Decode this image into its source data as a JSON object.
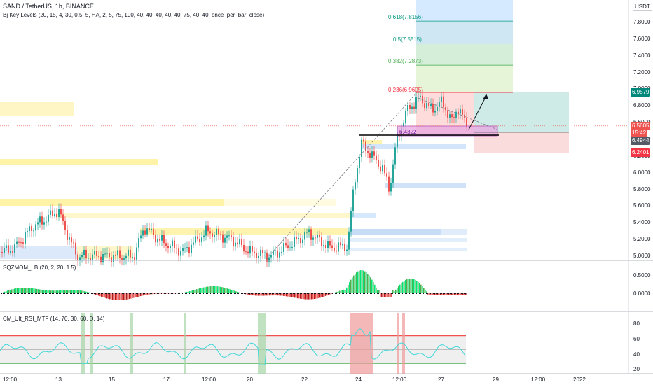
{
  "header": {
    "symbol_line": "SAND / TetherUS, 1h, BINANCE",
    "indicator_line": "Bj Key Levels (20, 15, 4, 30, 0.5, 5, HA, 2, 5, 75, 100, 40, 40, 40, 40, 40, 75, 40, 40, once_per_bar_close)",
    "currency_button": "USDT",
    "currency_prefix": "€"
  },
  "price_axis": {
    "ticks": [
      "7.8000",
      "7.6000",
      "7.4000",
      "7.2000",
      "7.0000",
      "6.8000",
      "6.6000",
      "6.4000",
      "6.2000",
      "6.0000",
      "5.8000",
      "5.6000",
      "5.4000",
      "5.2000",
      "5.0000"
    ],
    "tick_values": [
      7.8,
      7.6,
      7.4,
      7.2,
      7.0,
      6.8,
      6.6,
      6.4,
      6.2,
      6.0,
      5.8,
      5.6,
      5.4,
      5.2,
      5.0
    ],
    "badges": [
      {
        "text": "6.9579",
        "value": 6.9579,
        "color": "#00897b"
      },
      {
        "text": "6.5605",
        "value": 6.5605,
        "color": "#ef5350",
        "sub": "15:42"
      },
      {
        "text": "6.4944",
        "value": 6.4944,
        "color": "#555b66"
      },
      {
        "text": "6.2401",
        "value": 6.2401,
        "color": "#f23645"
      }
    ]
  },
  "fib_levels": [
    {
      "label": "0.618(7.8156)",
      "value": 7.8156,
      "color": "#089981"
    },
    {
      "label": "0.5(7.5515)",
      "value": 7.5515,
      "color": "#089981"
    },
    {
      "label": "0.382(7.2873)",
      "value": 7.2873,
      "color": "#4caf50"
    },
    {
      "label": "0.236(6.9605)",
      "value": 6.9605,
      "color": "#f23645"
    }
  ],
  "range_box_label": "6.4322",
  "sqz_panel": {
    "title": "SQZMOM_LB (20, 2, 20, 1.5)",
    "ticks": [
      "0.5000",
      "0.0000"
    ],
    "tick_values": [
      0.5,
      0.0
    ]
  },
  "rsi_panel": {
    "title": "CM_Ult_RSI_MTF (14, 70, 30, 60, D, 14)",
    "ticks": [
      "80",
      "60",
      "40",
      "20"
    ],
    "tick_values": [
      80,
      60,
      40,
      20
    ],
    "overbought": 70,
    "oversold": 30
  },
  "time_axis": {
    "labels": [
      "12:00",
      "13",
      "15",
      "17",
      "12:00",
      "20",
      "22",
      "24",
      "12:00",
      "27",
      "29",
      "12:00",
      "2022"
    ]
  },
  "colors": {
    "up": "#26a69a",
    "down": "#ef5350",
    "rsi_line": "#40d8d8",
    "fib_bg_top": "#bbdefb",
    "key_level_yellow": "#fff59d",
    "key_level_blue": "#90caf9",
    "stop_zone": "#ffcdd2",
    "target_zone": "#b2dfdb"
  }
}
